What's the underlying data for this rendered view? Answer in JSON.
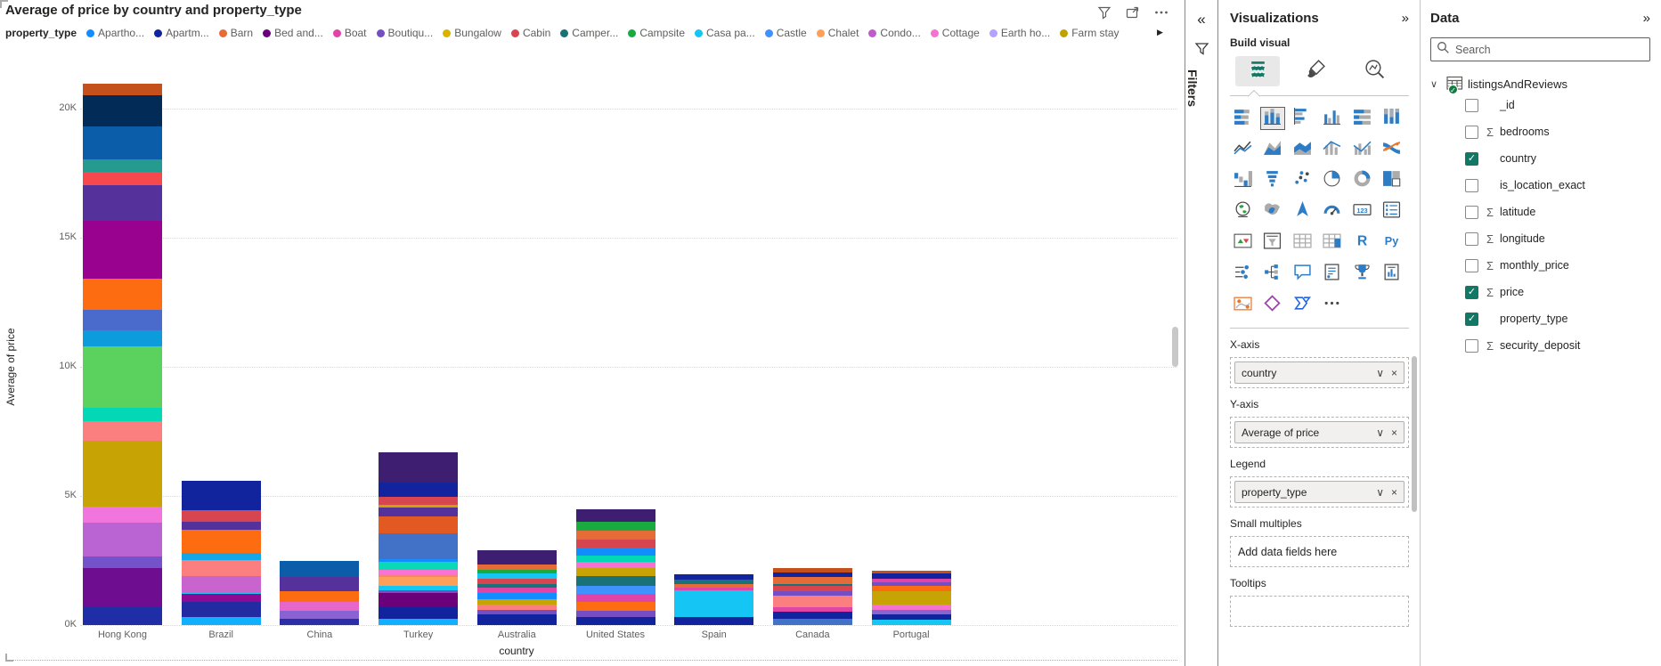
{
  "chart": {
    "title": "Average of price by country and property_type",
    "legend_title": "property_type",
    "y_axis_title": "Average of price",
    "x_axis_title": "country",
    "toolbar_icons": [
      "filter-icon",
      "focus-mode-icon",
      "more-options-icon"
    ],
    "legend_overflow_arrow": "▶"
  },
  "chart_data": {
    "type": "bar",
    "subtype": "stacked-column",
    "title": "Average of price by country and property_type",
    "xlabel": "country",
    "ylabel": "Average of price",
    "categories": [
      "Hong Kong",
      "Brazil",
      "China",
      "Turkey",
      "Australia",
      "United States",
      "Spain",
      "Canada",
      "Portugal"
    ],
    "totals_thousands": [
      20.95,
      5.6,
      2.5,
      6.7,
      2.9,
      4.5,
      1.95,
      2.2,
      2.1
    ],
    "y_ticks": [
      "0K",
      "5K",
      "10K",
      "15K",
      "20K"
    ],
    "ylim_thousands": [
      0,
      21.5
    ],
    "grid": "horizontal dotted",
    "legend_position": "top",
    "legend": [
      {
        "label": "Apartho...",
        "color": "#118DFF"
      },
      {
        "label": "Apartm...",
        "color": "#12239E"
      },
      {
        "label": "Barn",
        "color": "#E66C37"
      },
      {
        "label": "Bed and...",
        "color": "#6B007B"
      },
      {
        "label": "Boat",
        "color": "#E044A7"
      },
      {
        "label": "Boutiqu...",
        "color": "#744EC2"
      },
      {
        "label": "Bungalow",
        "color": "#D9B300"
      },
      {
        "label": "Cabin",
        "color": "#D64550"
      },
      {
        "label": "Camper...",
        "color": "#197278"
      },
      {
        "label": "Campsite",
        "color": "#1AAB40"
      },
      {
        "label": "Casa pa...",
        "color": "#15C6F4"
      },
      {
        "label": "Castle",
        "color": "#4092FF"
      },
      {
        "label": "Chalet",
        "color": "#FFA058"
      },
      {
        "label": "Condo...",
        "color": "#BE5DC9"
      },
      {
        "label": "Cottage",
        "color": "#F472D0"
      },
      {
        "label": "Earth ho...",
        "color": "#B5A1FF"
      },
      {
        "label": "Farm stay",
        "color": "#BFA202"
      }
    ],
    "bars": [
      {
        "category": "Hong Kong",
        "segments": [
          {
            "color": "#C4511C",
            "value_k": 0.45
          },
          {
            "color": "#032B57",
            "value_k": 1.2
          },
          {
            "color": "#0B5CA9",
            "value_k": 1.25
          },
          {
            "color": "#259B8F",
            "value_k": 0.5
          },
          {
            "color": "#F7484E",
            "value_k": 0.5
          },
          {
            "color": "#54319B",
            "value_k": 1.4
          },
          {
            "color": "#99028E",
            "value_k": 2.25
          },
          {
            "color": "#FE6C12",
            "value_k": 1.2
          },
          {
            "color": "#4A6BCB",
            "value_k": 0.8
          },
          {
            "color": "#0C9BDB",
            "value_k": 0.6
          },
          {
            "color": "#5CD25E",
            "value_k": 2.4
          },
          {
            "color": "#02D8B5",
            "value_k": 0.5
          },
          {
            "color": "#FB7F7F",
            "value_k": 0.75
          },
          {
            "color": "#C7A403",
            "value_k": 2.55
          },
          {
            "color": "#F175DC",
            "value_k": 0.65
          },
          {
            "color": "#BA64D4",
            "value_k": 1.3
          },
          {
            "color": "#7452C9",
            "value_k": 0.45
          },
          {
            "color": "#6E0D90",
            "value_k": 1.5
          },
          {
            "color": "#1F2DA6",
            "value_k": 0.7
          }
        ]
      },
      {
        "category": "Brazil",
        "segments": [
          {
            "color": "#12239E",
            "value_k": 1.15
          },
          {
            "color": "#D64550",
            "value_k": 0.45
          },
          {
            "color": "#54319B",
            "value_k": 0.3
          },
          {
            "color": "#FE6C12",
            "value_k": 0.9
          },
          {
            "color": "#15A6E8",
            "value_k": 0.3
          },
          {
            "color": "#FB7F7F",
            "value_k": 0.6
          },
          {
            "color": "#C964CF",
            "value_k": 0.65
          },
          {
            "color": "#15C6F4",
            "value_k": 0.05
          },
          {
            "color": "#8E0A94",
            "value_k": 0.3
          },
          {
            "color": "#232BA2",
            "value_k": 0.6
          },
          {
            "color": "#11B0FF",
            "value_k": 0.3
          }
        ]
      },
      {
        "category": "China",
        "segments": [
          {
            "color": "#0B5CA9",
            "value_k": 0.65
          },
          {
            "color": "#54319B",
            "value_k": 0.55
          },
          {
            "color": "#FE6C12",
            "value_k": 0.4
          },
          {
            "color": "#E667C9",
            "value_k": 0.35
          },
          {
            "color": "#8A63D2",
            "value_k": 0.3
          },
          {
            "color": "#2A2FA8",
            "value_k": 0.25
          }
        ]
      },
      {
        "category": "Turkey",
        "segments": [
          {
            "color": "#3D1E70",
            "value_k": 1.2
          },
          {
            "color": "#12239E",
            "value_k": 0.55
          },
          {
            "color": "#D64550",
            "value_k": 0.3
          },
          {
            "color": "#C7A403",
            "value_k": 0.1
          },
          {
            "color": "#54319B",
            "value_k": 0.35
          },
          {
            "color": "#E25A21",
            "value_k": 0.65
          },
          {
            "color": "#4272C8",
            "value_k": 1.0
          },
          {
            "color": "#118DFF",
            "value_k": 0.1
          },
          {
            "color": "#0AD9B8",
            "value_k": 0.3
          },
          {
            "color": "#F874D2",
            "value_k": 0.2
          },
          {
            "color": "#FB7F7F",
            "value_k": 0.1
          },
          {
            "color": "#FFA058",
            "value_k": 0.35
          },
          {
            "color": "#15C6F4",
            "value_k": 0.15
          },
          {
            "color": "#744EC2",
            "value_k": 0.1
          },
          {
            "color": "#6B007B",
            "value_k": 0.55
          },
          {
            "color": "#12239E",
            "value_k": 0.45
          },
          {
            "color": "#11B0FF",
            "value_k": 0.25
          }
        ]
      },
      {
        "category": "Australia",
        "segments": [
          {
            "color": "#3D1E70",
            "value_k": 0.55
          },
          {
            "color": "#E66C37",
            "value_k": 0.2
          },
          {
            "color": "#1AAB40",
            "value_k": 0.15
          },
          {
            "color": "#15C6F4",
            "value_k": 0.2
          },
          {
            "color": "#D64550",
            "value_k": 0.2
          },
          {
            "color": "#197278",
            "value_k": 0.15
          },
          {
            "color": "#E044A7",
            "value_k": 0.2
          },
          {
            "color": "#118DFF",
            "value_k": 0.25
          },
          {
            "color": "#C7A403",
            "value_k": 0.2
          },
          {
            "color": "#FB7F7F",
            "value_k": 0.2
          },
          {
            "color": "#744EC2",
            "value_k": 0.2
          },
          {
            "color": "#12239E",
            "value_k": 0.4
          }
        ]
      },
      {
        "category": "United States",
        "segments": [
          {
            "color": "#3D1E70",
            "value_k": 0.5
          },
          {
            "color": "#1AAB40",
            "value_k": 0.35
          },
          {
            "color": "#E66C37",
            "value_k": 0.35
          },
          {
            "color": "#D64550",
            "value_k": 0.3
          },
          {
            "color": "#118DFF",
            "value_k": 0.3
          },
          {
            "color": "#02D8B5",
            "value_k": 0.25
          },
          {
            "color": "#F472D0",
            "value_k": 0.25
          },
          {
            "color": "#C7A403",
            "value_k": 0.3
          },
          {
            "color": "#197278",
            "value_k": 0.4
          },
          {
            "color": "#4092FF",
            "value_k": 0.3
          },
          {
            "color": "#E044A7",
            "value_k": 0.3
          },
          {
            "color": "#FE6C12",
            "value_k": 0.35
          },
          {
            "color": "#744EC2",
            "value_k": 0.25
          },
          {
            "color": "#12239E",
            "value_k": 0.3
          }
        ]
      },
      {
        "category": "Spain",
        "segments": [
          {
            "color": "#12239E",
            "value_k": 0.2
          },
          {
            "color": "#197278",
            "value_k": 0.15
          },
          {
            "color": "#E66C37",
            "value_k": 0.15
          },
          {
            "color": "#E044A7",
            "value_k": 0.1
          },
          {
            "color": "#15C6F4",
            "value_k": 1.05
          },
          {
            "color": "#12239E",
            "value_k": 0.3
          }
        ]
      },
      {
        "category": "Canada",
        "segments": [
          {
            "color": "#C4511C",
            "value_k": 0.15
          },
          {
            "color": "#12239E",
            "value_k": 0.2
          },
          {
            "color": "#E66C37",
            "value_k": 0.25
          },
          {
            "color": "#197278",
            "value_k": 0.1
          },
          {
            "color": "#D64550",
            "value_k": 0.2
          },
          {
            "color": "#744EC2",
            "value_k": 0.15
          },
          {
            "color": "#FB7F7F",
            "value_k": 0.45
          },
          {
            "color": "#E044A7",
            "value_k": 0.2
          },
          {
            "color": "#12239E",
            "value_k": 0.25
          },
          {
            "color": "#4272C8",
            "value_k": 0.25
          }
        ]
      },
      {
        "category": "Portugal",
        "segments": [
          {
            "color": "#C4511C",
            "value_k": 0.1
          },
          {
            "color": "#12239E",
            "value_k": 0.2
          },
          {
            "color": "#E044A7",
            "value_k": 0.15
          },
          {
            "color": "#744EC2",
            "value_k": 0.15
          },
          {
            "color": "#FE6C12",
            "value_k": 0.2
          },
          {
            "color": "#C7A403",
            "value_k": 0.5
          },
          {
            "color": "#F472D0",
            "value_k": 0.2
          },
          {
            "color": "#8A63D2",
            "value_k": 0.2
          },
          {
            "color": "#12239E",
            "value_k": 0.2
          },
          {
            "color": "#15C6F4",
            "value_k": 0.2
          }
        ]
      }
    ]
  },
  "filters_panel": {
    "title": "Filters",
    "collapse_glyph": "«"
  },
  "viz_panel": {
    "title": "Visualizations",
    "collapse_glyph": "»",
    "build_label": "Build visual",
    "tabs": [
      "build-visual",
      "format-visual",
      "add-analytics"
    ],
    "selected_tab": "build-visual",
    "gallery_rows": [
      [
        "stacked-bar-chart",
        "stacked-column-chart",
        "clustered-bar-chart",
        "clustered-column-chart",
        "100-stacked-bar-chart",
        "100-stacked-column-chart"
      ],
      [
        "line-chart",
        "area-chart",
        "stacked-area-chart",
        "line-and-stacked-column-chart",
        "line-and-clustered-column-chart",
        "ribbon-chart"
      ],
      [
        "waterfall-chart",
        "funnel-chart",
        "scatter-chart",
        "pie-chart",
        "donut-chart",
        "treemap"
      ],
      [
        "map",
        "filled-map",
        "azure-map",
        "gauge",
        "card",
        "multi-row-card"
      ],
      [
        "kpi",
        "slicer",
        "table",
        "matrix",
        "r-script-visual",
        "python-visual"
      ],
      [
        "key-influencers",
        "decomposition-tree",
        "q-and-a",
        "smart-narrative",
        "metrics",
        "paginated-report"
      ],
      [
        "arcgis-map",
        "power-apps",
        "power-automate",
        "more-visuals"
      ]
    ],
    "selected_gallery": "stacked-column-chart",
    "wells": [
      {
        "label": "X-axis",
        "type": "pill",
        "value": "country"
      },
      {
        "label": "Y-axis",
        "type": "pill",
        "value": "Average of price"
      },
      {
        "label": "Legend",
        "type": "pill",
        "value": "property_type"
      },
      {
        "label": "Small multiples",
        "type": "empty",
        "placeholder": "Add data fields here"
      },
      {
        "label": "Tooltips",
        "type": "empty",
        "placeholder": ""
      }
    ],
    "pill_chevron": "∨",
    "pill_remove": "×"
  },
  "data_panel": {
    "title": "Data",
    "collapse_glyph": "»",
    "search_placeholder": "Search",
    "table": {
      "name": "listingsAndReviews",
      "expanded": true,
      "in_use": true
    },
    "fields": [
      {
        "name": "_id",
        "checked": false,
        "numeric": false
      },
      {
        "name": "bedrooms",
        "checked": false,
        "numeric": true
      },
      {
        "name": "country",
        "checked": true,
        "numeric": false
      },
      {
        "name": "is_location_exact",
        "checked": false,
        "numeric": false
      },
      {
        "name": "latitude",
        "checked": false,
        "numeric": true
      },
      {
        "name": "longitude",
        "checked": false,
        "numeric": true
      },
      {
        "name": "monthly_price",
        "checked": false,
        "numeric": true
      },
      {
        "name": "price",
        "checked": true,
        "numeric": true
      },
      {
        "name": "property_type",
        "checked": true,
        "numeric": false
      },
      {
        "name": "security_deposit",
        "checked": false,
        "numeric": true
      }
    ]
  },
  "colors": {
    "accent_teal": "#117865",
    "checkbox_checked": "#117865",
    "table_badge_green": "#107C41",
    "text_dark": "#252423",
    "text_grey": "#605E5C",
    "gridline": "#DADADA"
  }
}
